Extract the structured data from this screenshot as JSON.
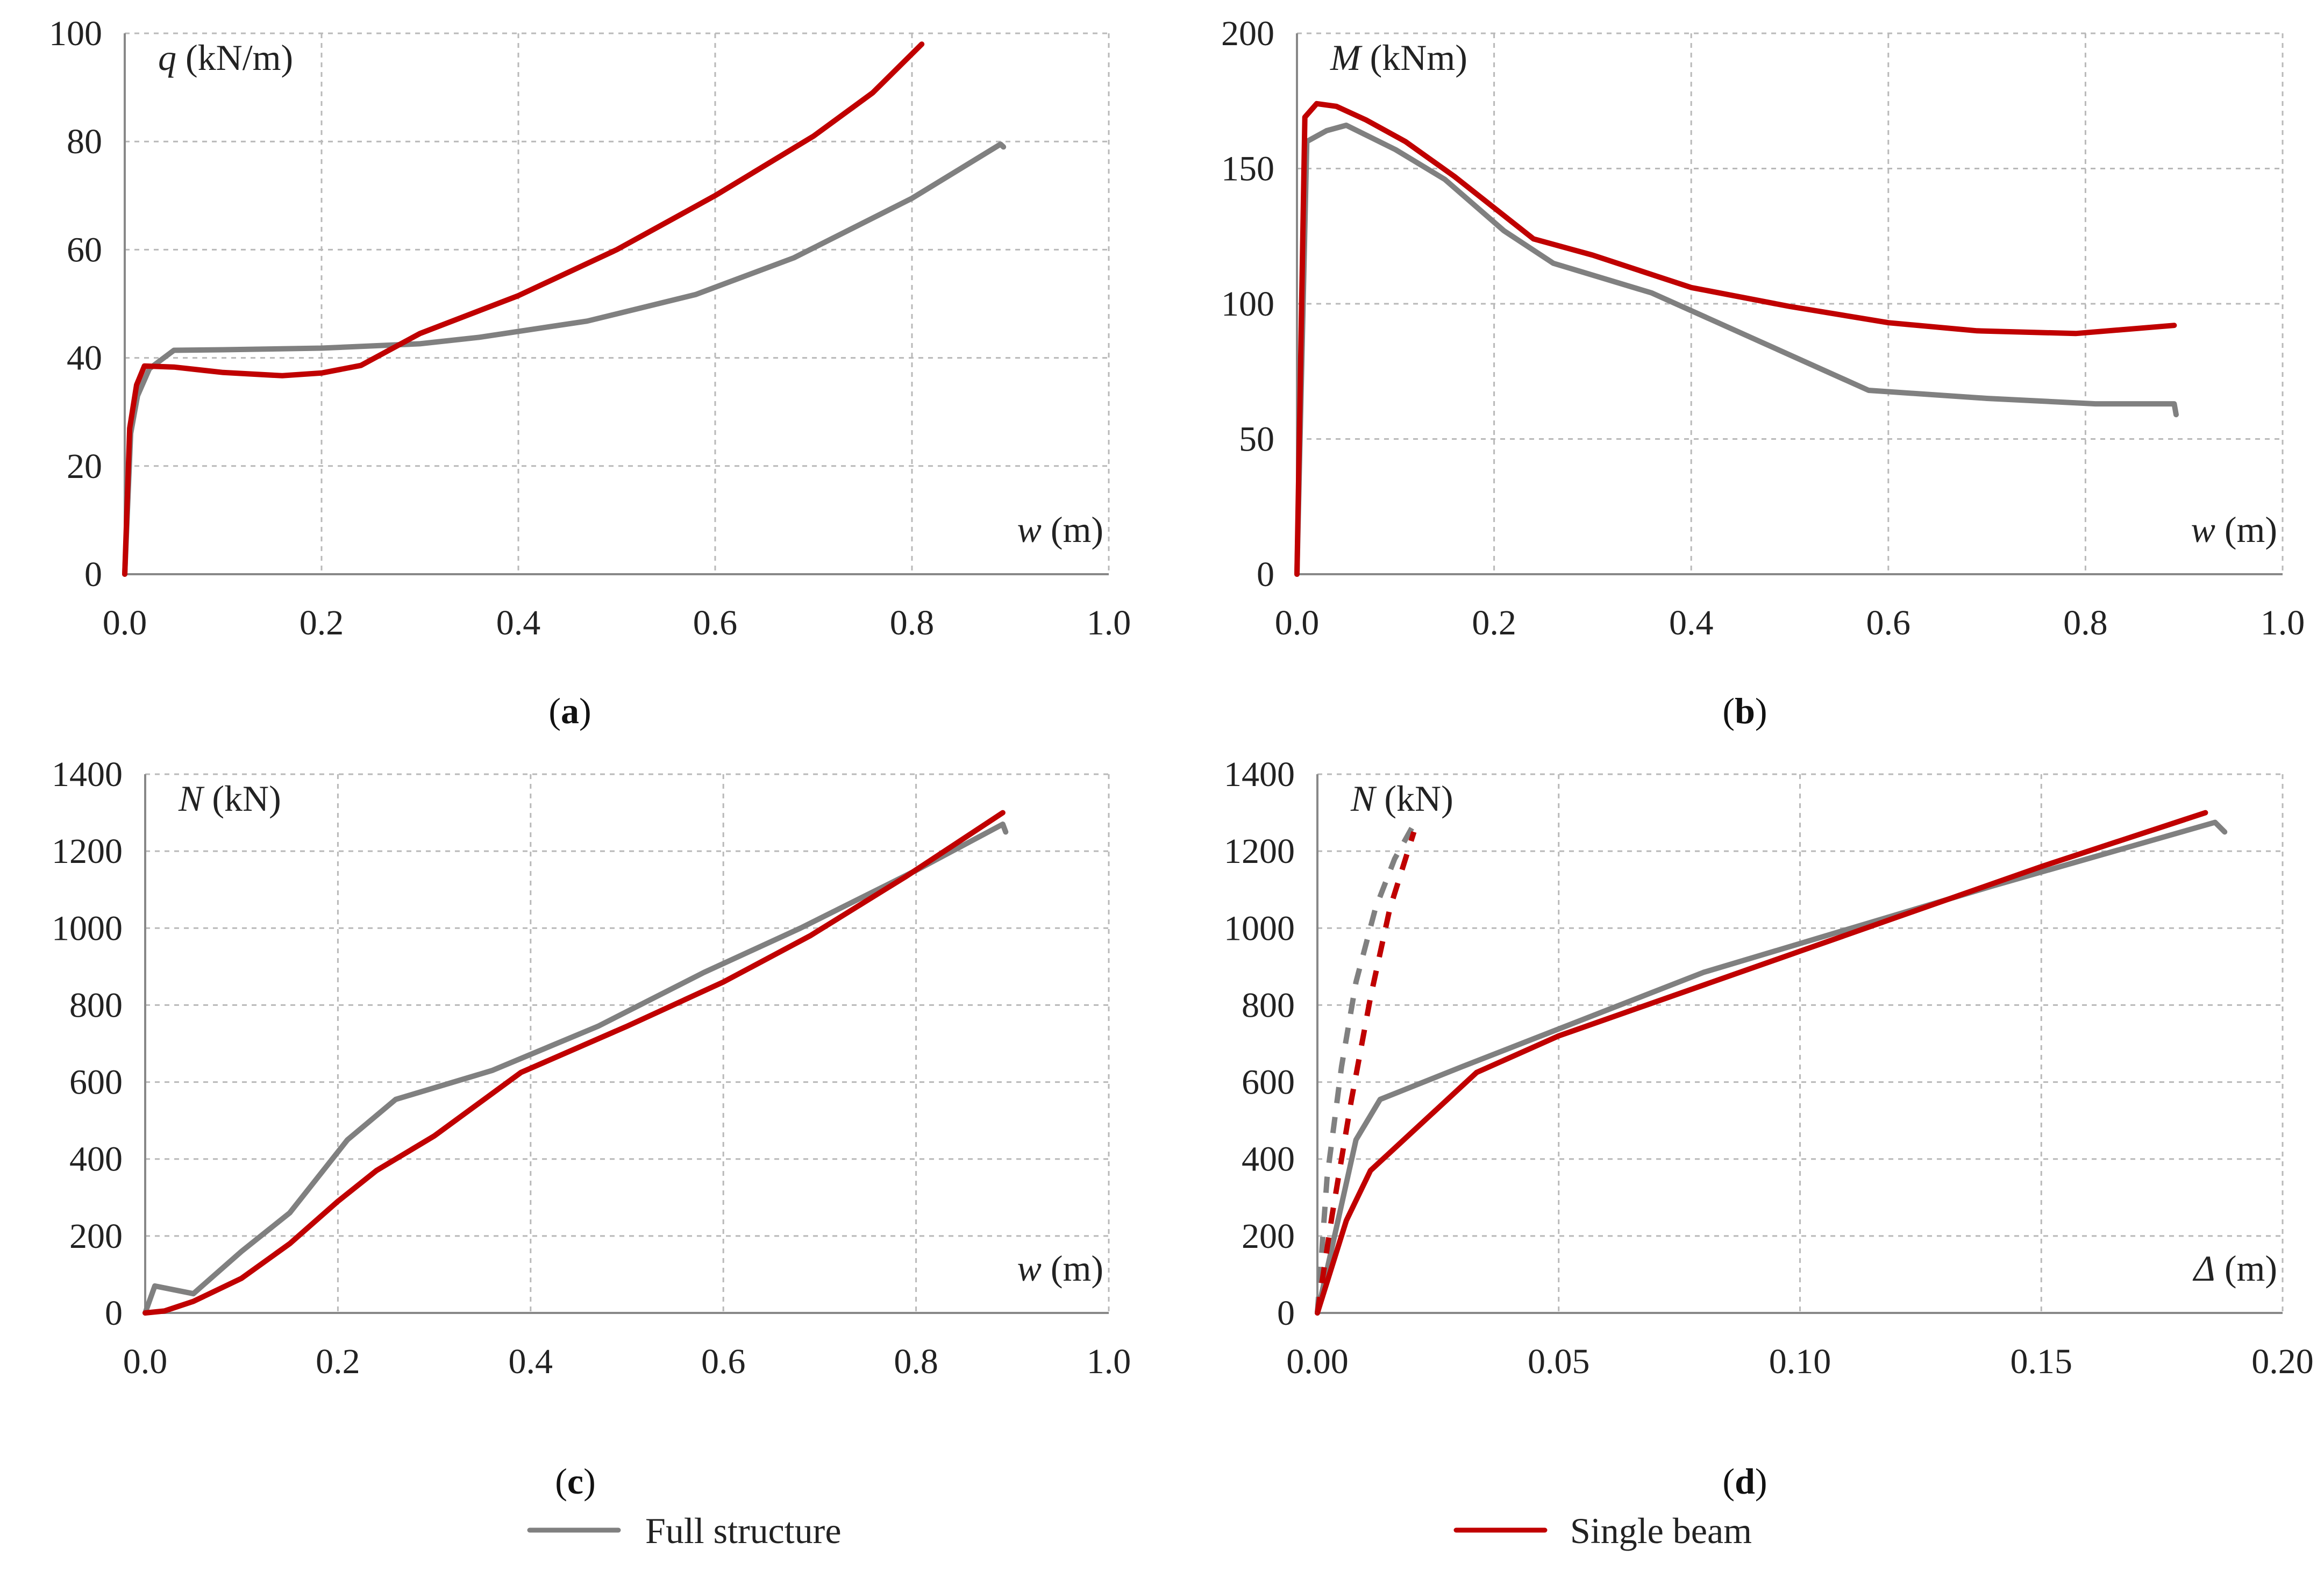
{
  "colors": {
    "full": "#808080",
    "single": "#c00000"
  },
  "legend": {
    "full": "Full structure",
    "single": "Single beam"
  },
  "chart_data": [
    {
      "id": "a",
      "type": "line",
      "caption": "a",
      "yvar": "q",
      "yunit": " (kN/m)",
      "xvar": "w",
      "xunit": " (m)",
      "xlim": [
        0,
        1.0
      ],
      "ylim": [
        0,
        100
      ],
      "xticks": [
        "0.0",
        "0.2",
        "0.4",
        "0.6",
        "0.8",
        "1.0"
      ],
      "yticks": [
        "0",
        "20",
        "40",
        "60",
        "80",
        "100"
      ],
      "series": [
        {
          "name": "Full structure",
          "style": "solid",
          "x": [
            0,
            0.006,
            0.013,
            0.025,
            0.05,
            0.1,
            0.2,
            0.3,
            0.36,
            0.47,
            0.58,
            0.68,
            0.8,
            0.89,
            0.893
          ],
          "y": [
            0,
            26,
            33,
            38,
            41.4,
            41.5,
            41.8,
            42.6,
            43.8,
            46.8,
            51.7,
            58.5,
            69.5,
            79.5,
            79
          ]
        },
        {
          "name": "Single beam",
          "style": "solid",
          "x": [
            0,
            0.005,
            0.012,
            0.02,
            0.05,
            0.1,
            0.16,
            0.2,
            0.24,
            0.3,
            0.4,
            0.5,
            0.6,
            0.7,
            0.76,
            0.81
          ],
          "y": [
            0,
            27,
            35,
            38.5,
            38.3,
            37.3,
            36.7,
            37.2,
            38.6,
            44.5,
            51.5,
            60,
            70,
            81,
            89,
            98
          ]
        }
      ]
    },
    {
      "id": "b",
      "type": "line",
      "caption": "b",
      "yvar": "M",
      "yunit": " (kNm)",
      "xvar": "w",
      "xunit": " (m)",
      "xlim": [
        0,
        1.0
      ],
      "ylim": [
        0,
        200
      ],
      "xticks": [
        "0.0",
        "0.2",
        "0.4",
        "0.6",
        "0.8",
        "1.0"
      ],
      "yticks": [
        "0",
        "50",
        "100",
        "150",
        "200"
      ],
      "series": [
        {
          "name": "Full structure",
          "style": "solid",
          "x": [
            0,
            0.01,
            0.03,
            0.05,
            0.1,
            0.15,
            0.21,
            0.26,
            0.36,
            0.47,
            0.58,
            0.7,
            0.81,
            0.89,
            0.892
          ],
          "y": [
            0,
            160,
            164,
            166,
            157,
            146,
            127,
            115,
            104,
            86,
            68,
            65,
            63,
            63,
            59
          ]
        },
        {
          "name": "Single beam",
          "style": "solid",
          "x": [
            0,
            0.008,
            0.02,
            0.04,
            0.07,
            0.11,
            0.16,
            0.24,
            0.3,
            0.4,
            0.5,
            0.6,
            0.69,
            0.79,
            0.89
          ],
          "y": [
            0,
            169,
            174,
            173,
            168,
            160,
            147,
            124,
            118,
            106,
            99,
            93,
            90,
            89,
            92
          ]
        }
      ]
    },
    {
      "id": "c",
      "type": "line",
      "caption": "c",
      "yvar": "N",
      "yunit": " (kN)",
      "xvar": "w",
      "xunit": " (m)",
      "xlim": [
        0,
        1.0
      ],
      "ylim": [
        0,
        1400
      ],
      "xticks": [
        "0.0",
        "0.2",
        "0.4",
        "0.6",
        "0.8",
        "1.0"
      ],
      "yticks": [
        "0",
        "200",
        "400",
        "600",
        "800",
        "1000",
        "1200",
        "1400"
      ],
      "series": [
        {
          "name": "Full structure",
          "style": "solid",
          "x": [
            0,
            0.01,
            0.05,
            0.1,
            0.15,
            0.21,
            0.26,
            0.36,
            0.47,
            0.58,
            0.68,
            0.8,
            0.89,
            0.893
          ],
          "y": [
            0,
            70,
            50,
            160,
            260,
            450,
            555,
            630,
            745,
            885,
            1000,
            1150,
            1270,
            1250
          ]
        },
        {
          "name": "Single beam",
          "style": "solid",
          "x": [
            0,
            0.02,
            0.05,
            0.1,
            0.15,
            0.2,
            0.24,
            0.3,
            0.39,
            0.5,
            0.6,
            0.69,
            0.79,
            0.89
          ],
          "y": [
            0,
            5,
            30,
            90,
            180,
            290,
            370,
            460,
            625,
            745,
            860,
            980,
            1135,
            1300
          ]
        }
      ]
    },
    {
      "id": "d",
      "type": "line",
      "caption": "d",
      "yvar": "N",
      "yunit": " (kN)",
      "xvar": "Δ",
      "xunit": " (m)",
      "xlim": [
        0,
        0.2
      ],
      "ylim": [
        0,
        1400
      ],
      "xticks": [
        "0.00",
        "0.05",
        "0.10",
        "0.15",
        "0.20"
      ],
      "yticks": [
        "0",
        "200",
        "400",
        "600",
        "800",
        "1000",
        "1200",
        "1400"
      ],
      "series": [
        {
          "name": "Full structure",
          "style": "solid",
          "x": [
            0,
            0.008,
            0.013,
            0.03,
            0.08,
            0.14,
            0.186,
            0.188
          ],
          "y": [
            0,
            450,
            555,
            640,
            885,
            1110,
            1275,
            1250
          ]
        },
        {
          "name": "Single beam",
          "style": "solid",
          "x": [
            0,
            0.006,
            0.011,
            0.033,
            0.05,
            0.1,
            0.15,
            0.184
          ],
          "y": [
            0,
            240,
            370,
            625,
            720,
            940,
            1160,
            1300
          ]
        },
        {
          "name": "Full structure",
          "style": "dashed",
          "x": [
            0,
            0.002,
            0.005,
            0.008,
            0.012,
            0.016,
            0.02
          ],
          "y": [
            0,
            350,
            640,
            860,
            1050,
            1180,
            1270
          ]
        },
        {
          "name": "Single beam",
          "style": "dashed",
          "x": [
            0,
            0.003,
            0.007,
            0.011,
            0.015,
            0.02
          ],
          "y": [
            0,
            250,
            550,
            820,
            1050,
            1250
          ]
        }
      ]
    }
  ]
}
